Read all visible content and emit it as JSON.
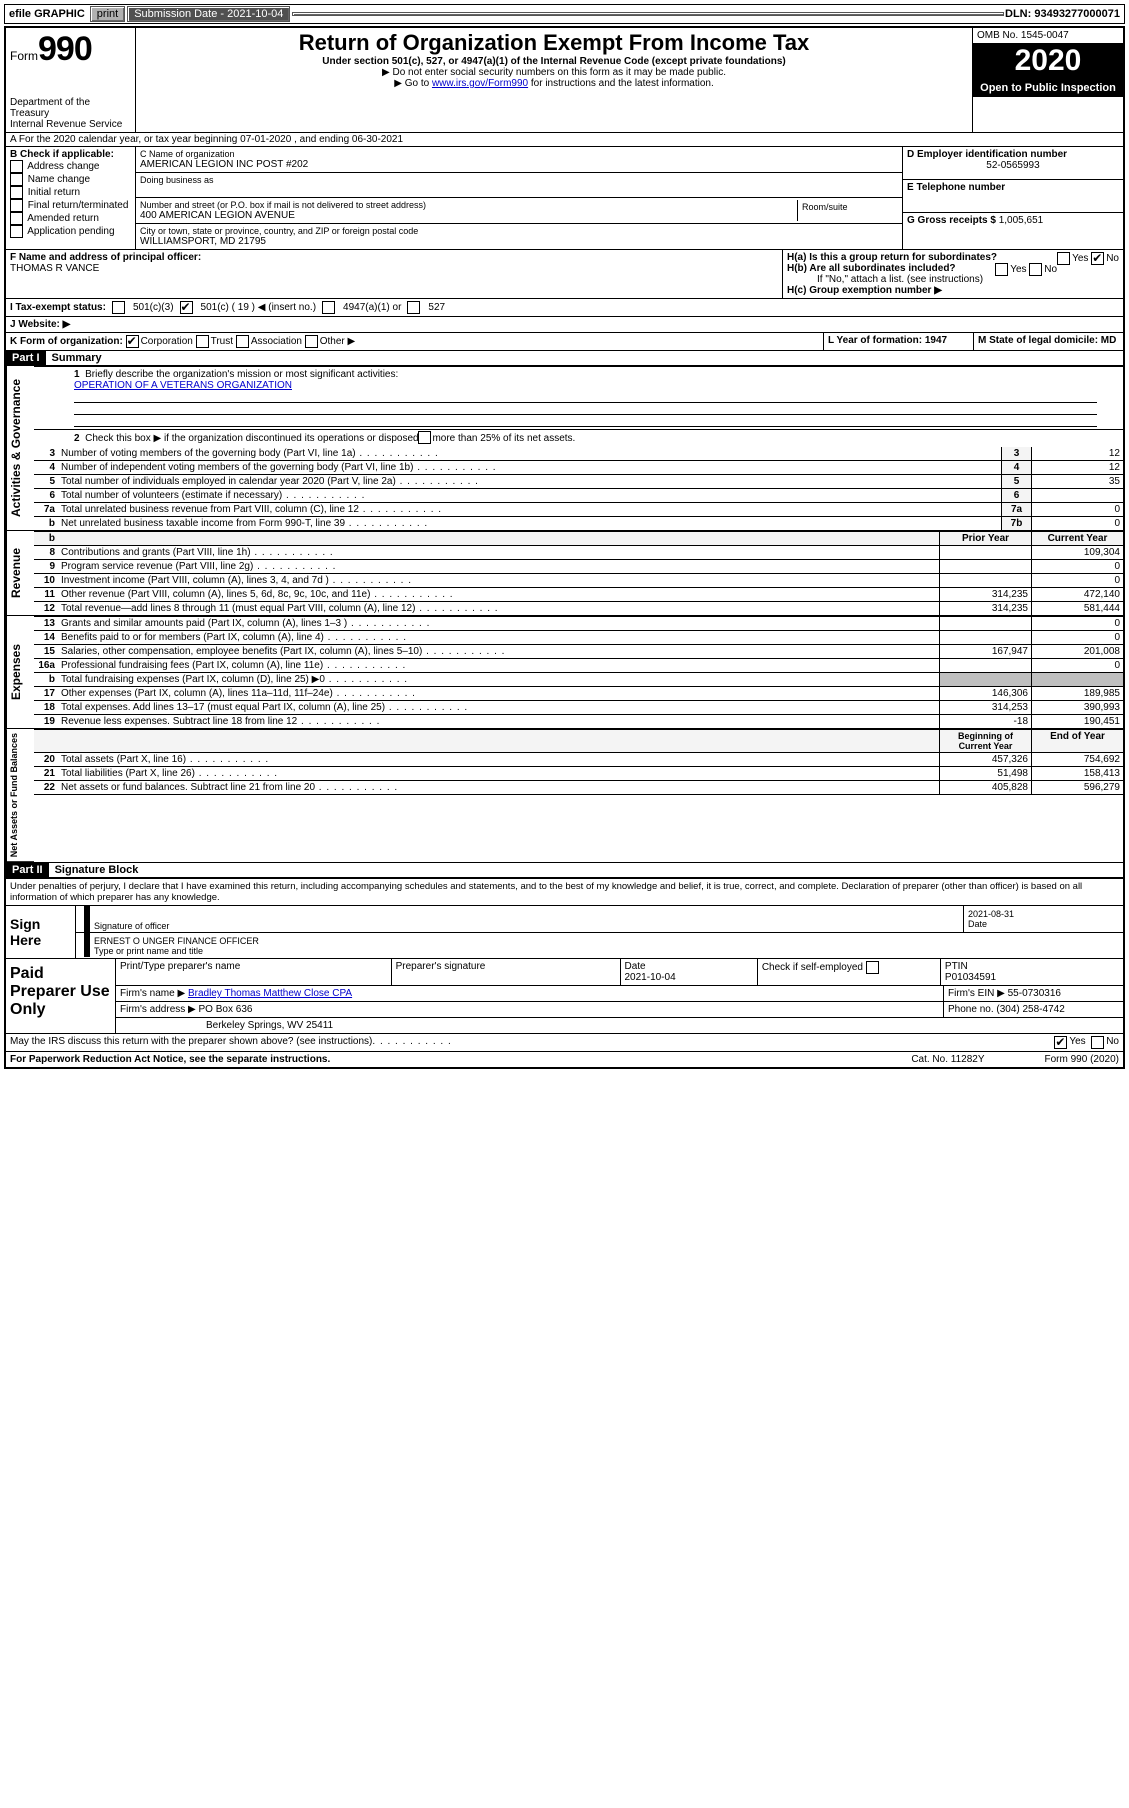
{
  "topbar": {
    "efile": "efile GRAPHIC",
    "print": "print",
    "subdate_label": "Submission Date - 2021-10-04",
    "dln": "DLN: 93493277000071"
  },
  "header": {
    "form_word": "Form",
    "form_num": "990",
    "dept": "Department of the Treasury\nInternal Revenue Service",
    "title": "Return of Organization Exempt From Income Tax",
    "sub1": "Under section 501(c), 527, or 4947(a)(1) of the Internal Revenue Code (except private foundations)",
    "sub2": "Do not enter social security numbers on this form as it may be made public.",
    "sub3_pre": "Go to ",
    "sub3_link": "www.irs.gov/Form990",
    "sub3_post": " for instructions and the latest information.",
    "omb": "OMB No. 1545-0047",
    "year": "2020",
    "open": "Open to Public Inspection"
  },
  "rowA": "A   For the 2020 calendar year, or tax year beginning 07-01-2020     , and ending 06-30-2021",
  "colB": {
    "title": "B Check if applicable:",
    "items": [
      "Address change",
      "Name change",
      "Initial return",
      "Final return/terminated",
      "Amended return",
      "Application pending"
    ]
  },
  "colC": {
    "name_lbl": "C Name of organization",
    "name": "AMERICAN LEGION INC POST #202",
    "dba_lbl": "Doing business as",
    "addr_lbl": "Number and street (or P.O. box if mail is not delivered to street address)",
    "room_lbl": "Room/suite",
    "addr": "400 AMERICAN LEGION AVENUE",
    "city_lbl": "City or town, state or province, country, and ZIP or foreign postal code",
    "city": "WILLIAMSPORT, MD  21795"
  },
  "colD": {
    "ein_lbl": "D Employer identification number",
    "ein": "52-0565993",
    "tel_lbl": "E Telephone number",
    "gross_lbl": "G Gross receipts $",
    "gross": "1,005,651"
  },
  "rowF": {
    "lbl": "F  Name and address of principal officer:",
    "name": "THOMAS R VANCE"
  },
  "rowH": {
    "ha": "H(a)  Is this a group return for subordinates?",
    "hb": "H(b)  Are all subordinates included?",
    "hb_note": "If \"No,\" attach a list. (see instructions)",
    "hc": "H(c)  Group exemption number ▶",
    "yes": "Yes",
    "no": "No"
  },
  "rowI": {
    "lbl": "I     Tax-exempt status:",
    "o1": "501(c)(3)",
    "o2a": "501(c) ( 19 ) ◀ (insert no.)",
    "o3": "4947(a)(1) or",
    "o4": "527"
  },
  "rowJ": {
    "lbl": "J     Website: ▶"
  },
  "rowK": {
    "k": "K Form of organization:",
    "corp": "Corporation",
    "trust": "Trust",
    "assoc": "Association",
    "other": "Other ▶",
    "l": "L Year of formation: 1947",
    "m": "M State of legal domicile: MD"
  },
  "part1": {
    "tag": "Part I",
    "title": "Summary"
  },
  "part2": {
    "tag": "Part II",
    "title": "Signature Block"
  },
  "summary": {
    "q1": "Briefly describe the organization's mission or most significant activities:",
    "q1v": "OPERATION OF A VETERANS ORGANIZATION",
    "q2": "Check this box ▶        if the organization discontinued its operations or disposed of more than 25% of its net assets.",
    "lines_ag": [
      {
        "n": "3",
        "t": "Number of voting members of the governing body (Part VI, line 1a)",
        "b": "3",
        "v": "12"
      },
      {
        "n": "4",
        "t": "Number of independent voting members of the governing body (Part VI, line 1b)",
        "b": "4",
        "v": "12"
      },
      {
        "n": "5",
        "t": "Total number of individuals employed in calendar year 2020 (Part V, line 2a)",
        "b": "5",
        "v": "35"
      },
      {
        "n": "6",
        "t": "Total number of volunteers (estimate if necessary)",
        "b": "6",
        "v": ""
      },
      {
        "n": "7a",
        "t": "Total unrelated business revenue from Part VIII, column (C), line 12",
        "b": "7a",
        "v": "0"
      },
      {
        "n": "b",
        "t": "Net unrelated business taxable income from Form 990-T, line 39",
        "b": "7b",
        "v": "0"
      }
    ],
    "hdr_prior": "Prior Year",
    "hdr_curr": "Current Year",
    "rev": [
      {
        "n": "8",
        "t": "Contributions and grants (Part VIII, line 1h)",
        "p": "",
        "c": "109,304"
      },
      {
        "n": "9",
        "t": "Program service revenue (Part VIII, line 2g)",
        "p": "",
        "c": "0"
      },
      {
        "n": "10",
        "t": "Investment income (Part VIII, column (A), lines 3, 4, and 7d )",
        "p": "",
        "c": "0"
      },
      {
        "n": "11",
        "t": "Other revenue (Part VIII, column (A), lines 5, 6d, 8c, 9c, 10c, and 11e)",
        "p": "314,235",
        "c": "472,140"
      },
      {
        "n": "12",
        "t": "Total revenue—add lines 8 through 11 (must equal Part VIII, column (A), line 12)",
        "p": "314,235",
        "c": "581,444"
      }
    ],
    "exp": [
      {
        "n": "13",
        "t": "Grants and similar amounts paid (Part IX, column (A), lines 1–3 )",
        "p": "",
        "c": "0"
      },
      {
        "n": "14",
        "t": "Benefits paid to or for members (Part IX, column (A), line 4)",
        "p": "",
        "c": "0"
      },
      {
        "n": "15",
        "t": "Salaries, other compensation, employee benefits (Part IX, column (A), lines 5–10)",
        "p": "167,947",
        "c": "201,008"
      },
      {
        "n": "16a",
        "t": "Professional fundraising fees (Part IX, column (A), line 11e)",
        "p": "",
        "c": "0"
      },
      {
        "n": "b",
        "t": "Total fundraising expenses (Part IX, column (D), line 25) ▶0",
        "p": "SHADE",
        "c": "SHADE"
      },
      {
        "n": "17",
        "t": "Other expenses (Part IX, column (A), lines 11a–11d, 11f–24e)",
        "p": "146,306",
        "c": "189,985"
      },
      {
        "n": "18",
        "t": "Total expenses. Add lines 13–17 (must equal Part IX, column (A), line 25)",
        "p": "314,253",
        "c": "390,993"
      },
      {
        "n": "19",
        "t": "Revenue less expenses. Subtract line 18 from line 12",
        "p": "-18",
        "c": "190,451"
      }
    ],
    "hdr_beg": "Beginning of Current Year",
    "hdr_end": "End of Year",
    "net": [
      {
        "n": "20",
        "t": "Total assets (Part X, line 16)",
        "p": "457,326",
        "c": "754,692"
      },
      {
        "n": "21",
        "t": "Total liabilities (Part X, line 26)",
        "p": "51,498",
        "c": "158,413"
      },
      {
        "n": "22",
        "t": "Net assets or fund balances. Subtract line 21 from line 20",
        "p": "405,828",
        "c": "596,279"
      }
    ]
  },
  "penalties": "Under penalties of perjury, I declare that I have examined this return, including accompanying schedules and statements, and to the best of my knowledge and belief, it is true, correct, and complete. Declaration of preparer (other than officer) is based on all information of which preparer has any knowledge.",
  "sign": {
    "here": "Sign Here",
    "sig_off": "Signature of officer",
    "date": "Date",
    "date_v": "2021-08-31",
    "name": "ERNEST O UNGER  FINANCE OFFICER",
    "name_lbl": "Type or print name and title"
  },
  "prep": {
    "label": "Paid Preparer Use Only",
    "r1": {
      "a": "Print/Type preparer's name",
      "b": "Preparer's signature",
      "c": "Date",
      "cv": "2021-10-04",
      "d": "Check        if self-employed",
      "e": "PTIN",
      "ev": "P01034591"
    },
    "r2": {
      "a": "Firm's name      ▶",
      "av": "Bradley Thomas Matthew Close CPA",
      "b": "Firm's EIN ▶",
      "bv": "55-0730316"
    },
    "r3": {
      "a": "Firm's address ▶",
      "av": "PO Box 636",
      "b": "Phone no. (304) 258-4742"
    },
    "r3b": "Berkeley Springs, WV  25411"
  },
  "irs_q": "May the IRS discuss this return with the preparer shown above? (see instructions)",
  "foot": {
    "l": "For Paperwork Reduction Act Notice, see the separate instructions.",
    "m": "Cat. No. 11282Y",
    "r": "Form 990 (2020)"
  },
  "vlabels": {
    "ag": "Activities & Governance",
    "rev": "Revenue",
    "exp": "Expenses",
    "net": "Net Assets or Fund Balances"
  }
}
